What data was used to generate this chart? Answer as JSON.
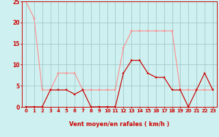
{
  "bg_color": "#cff0f0",
  "grid_color": "#a0c8c8",
  "line1_color": "#ff8888",
  "line2_color": "#cc0000",
  "x_hours": [
    0,
    1,
    2,
    3,
    4,
    5,
    6,
    7,
    8,
    9,
    10,
    11,
    12,
    13,
    14,
    15,
    16,
    17,
    18,
    19,
    20,
    21,
    22,
    23
  ],
  "rafales": [
    25,
    21,
    4,
    4,
    8,
    8,
    8,
    4,
    4,
    4,
    4,
    4,
    14,
    18,
    18,
    18,
    18,
    18,
    18,
    4,
    4,
    4,
    4,
    4
  ],
  "moyen": [
    0,
    0,
    0,
    4,
    4,
    4,
    3,
    4,
    0,
    0,
    0,
    0,
    8,
    11,
    11,
    8,
    7,
    7,
    4,
    4,
    0,
    4,
    8,
    4
  ],
  "xlabel": "Vent moyen/en rafales ( km/h )",
  "ylim": [
    0,
    25
  ],
  "yticks": [
    0,
    5,
    10,
    15,
    20,
    25
  ],
  "xticks": [
    0,
    1,
    2,
    3,
    4,
    5,
    6,
    7,
    8,
    9,
    10,
    11,
    12,
    13,
    14,
    15,
    16,
    17,
    18,
    19,
    20,
    21,
    22,
    23
  ],
  "xlabel_color": "#cc0000",
  "tick_label_fontsize": 5.0,
  "ylabel_fontsize": 5.5,
  "xlabel_fontsize": 6.0
}
